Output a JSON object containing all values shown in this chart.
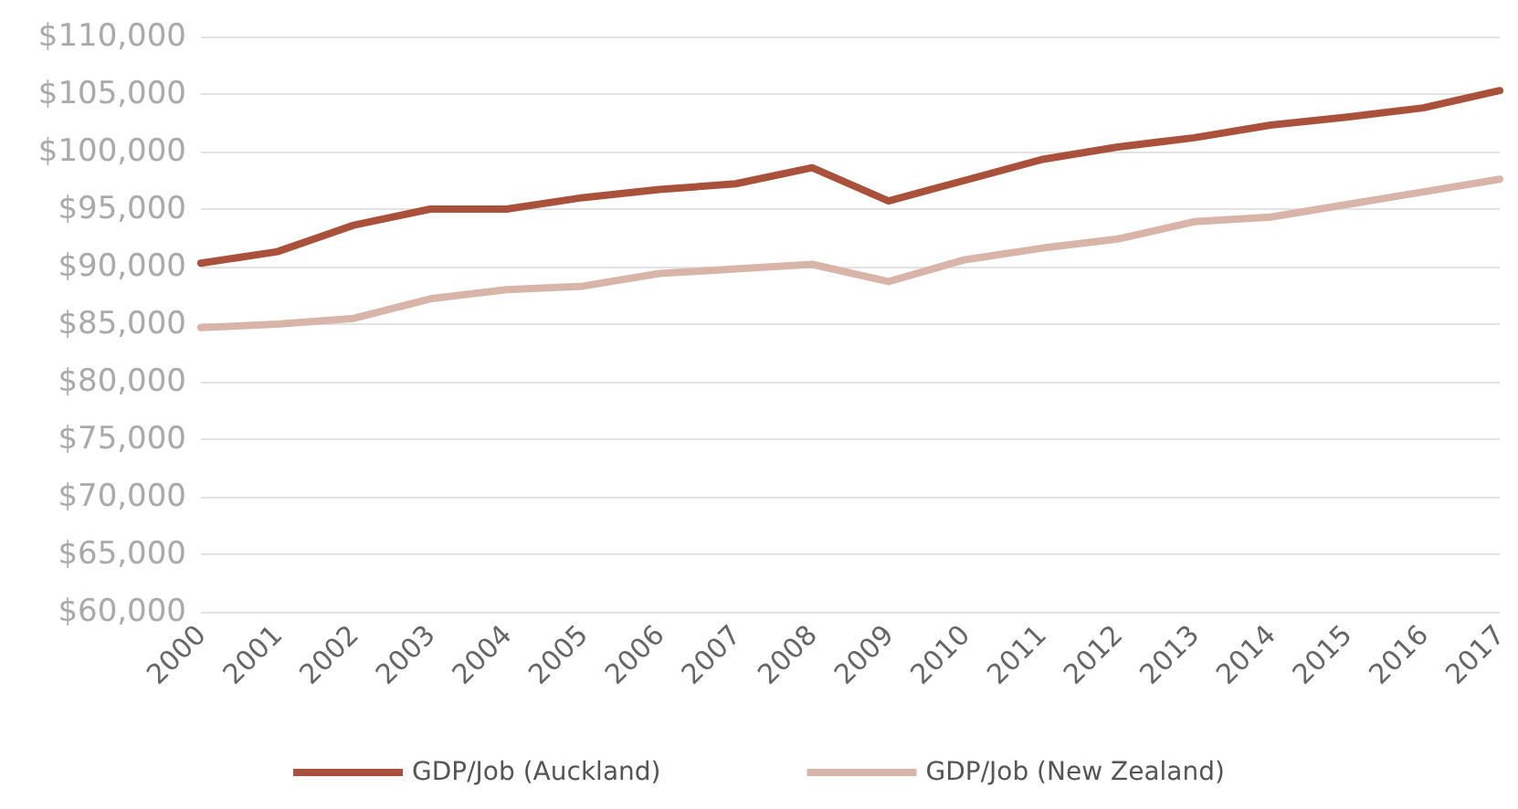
{
  "chart_data": {
    "type": "line",
    "categories": [
      "2000",
      "2001",
      "2002",
      "2003",
      "2004",
      "2005",
      "2006",
      "2007",
      "2008",
      "2009",
      "2010",
      "2011",
      "2012",
      "2013",
      "2014",
      "2015",
      "2016",
      "2017"
    ],
    "series": [
      {
        "name": "GDP/Job (Auckland)",
        "color": "#a9513b",
        "values": [
          90300,
          91300,
          93600,
          95000,
          95000,
          96000,
          96700,
          97200,
          98600,
          95700,
          97500,
          99300,
          100400,
          101200,
          102300,
          103000,
          103800,
          105300
        ]
      },
      {
        "name": "GDP/Job (New Zealand)",
        "color": "#d9b4a8",
        "values": [
          84700,
          85000,
          85500,
          87200,
          88000,
          88300,
          89400,
          89800,
          90200,
          88700,
          90600,
          91600,
          92400,
          93900,
          94300,
          95400,
          96500,
          97600
        ]
      }
    ],
    "ylim": [
      60000,
      110000
    ],
    "yticks": [
      {
        "value": 60000,
        "label": "$60,000"
      },
      {
        "value": 65000,
        "label": "$65,000"
      },
      {
        "value": 70000,
        "label": "$70,000"
      },
      {
        "value": 75000,
        "label": "$75,000"
      },
      {
        "value": 80000,
        "label": "$80,000"
      },
      {
        "value": 85000,
        "label": "$85,000"
      },
      {
        "value": 90000,
        "label": "$90,000"
      },
      {
        "value": 95000,
        "label": "$95,000"
      },
      {
        "value": 100000,
        "label": "$100,000"
      },
      {
        "value": 105000,
        "label": "$105,000"
      },
      {
        "value": 110000,
        "label": "$110,000"
      }
    ],
    "grid": "y",
    "legend": "bottom",
    "marker": "none",
    "line_style": "solid"
  }
}
